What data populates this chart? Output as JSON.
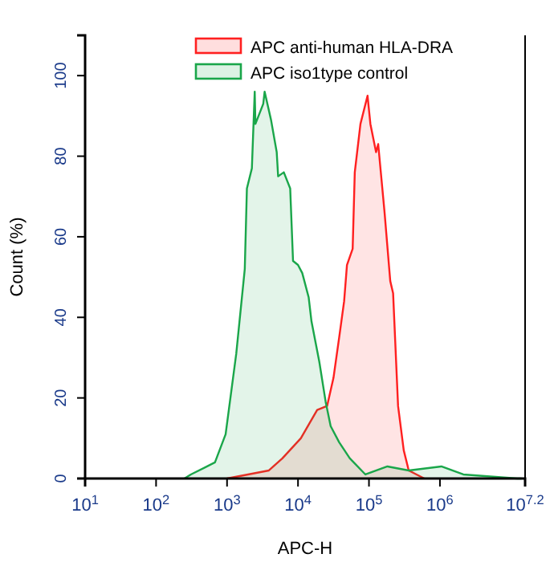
{
  "chart_data": {
    "type": "area",
    "xlabel": "APC-H",
    "ylabel": "Count  (%)",
    "log": "x",
    "legend": "top right",
    "grid": false,
    "xlim": [
      10,
      15848932
    ],
    "xticks": [
      {
        "value": 10,
        "label": "10$^{1}$"
      },
      {
        "value": 100,
        "label": "10$^{2}$"
      },
      {
        "value": 1000,
        "label": "10$^{3}$"
      },
      {
        "value": 10000,
        "label": "10$^{4}$"
      },
      {
        "value": 100000,
        "label": "10$^{5}$"
      },
      {
        "value": 1000000,
        "label": "10$^{6}$"
      },
      {
        "value": 15848932,
        "label": "10$^{7.2}$"
      }
    ],
    "ylim": [
      0,
      110
    ],
    "yticks": [
      0,
      20,
      40,
      60,
      80,
      100
    ],
    "series": [
      {
        "name": "APC anti-human HLA-DRA",
        "color": "#ff2020",
        "x": [
          1000,
          3890,
          6026,
          10965,
          18621,
          25704,
          31623,
          38019,
          44668,
          48978,
          58884,
          63096,
          75858,
          95499,
          104713,
          125893,
          134896,
          165959,
          199526,
          218776,
          257040,
          309030,
          363078,
          602560
        ],
        "values": [
          0,
          2,
          5,
          10,
          17,
          18,
          25,
          35,
          44,
          53,
          57,
          76,
          88,
          95,
          88,
          81,
          83,
          66,
          49,
          46,
          18,
          7,
          2,
          0
        ]
      },
      {
        "name": "APC iso1type control",
        "color": "#1aa64a",
        "x": [
          251,
          309,
          676,
          955,
          1349,
          1778,
          1905,
          2239,
          2455,
          2512,
          3236,
          3388,
          4169,
          5012,
          5248,
          6310,
          7762,
          8511,
          10000,
          11482,
          14125,
          15488,
          19953,
          24547,
          28840,
          38019,
          53703,
          89125,
          181970,
          363078,
          1047129,
          2137962,
          12302688,
          14125375
        ],
        "values": [
          0,
          1,
          4,
          11,
          31,
          52,
          72,
          77,
          96,
          88,
          93,
          96,
          89,
          81,
          75,
          76,
          72,
          54,
          53,
          51,
          45,
          39,
          29,
          19,
          13,
          9,
          5,
          1,
          3,
          2,
          3,
          1,
          0,
          0
        ]
      }
    ]
  }
}
